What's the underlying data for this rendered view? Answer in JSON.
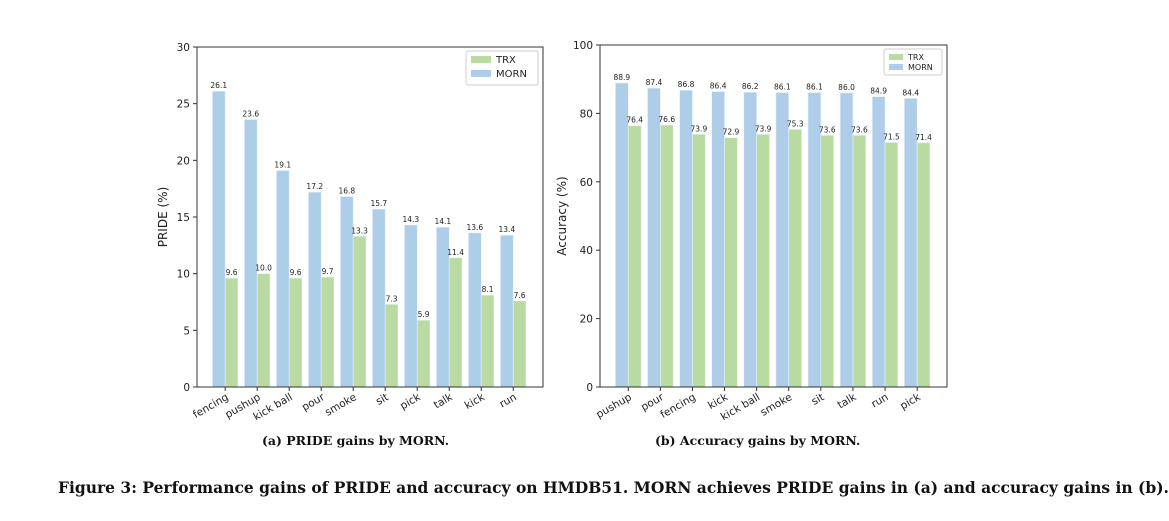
{
  "chart_data": [
    {
      "type": "bar",
      "caption": "(a) PRIDE gains by MORN.",
      "ylabel": "PRIDE (%)",
      "xlabel": "",
      "ylim": [
        0,
        30
      ],
      "yticks": [
        0,
        5,
        10,
        15,
        20,
        25,
        30
      ],
      "categories": [
        "fencing",
        "pushup",
        "kick ball",
        "pour",
        "smoke",
        "sit",
        "pick",
        "talk",
        "kick",
        "run"
      ],
      "series": [
        {
          "name": "MORN",
          "color": "#aecde9",
          "values": [
            26.1,
            23.6,
            19.1,
            17.2,
            16.8,
            15.7,
            14.3,
            14.1,
            13.6,
            13.4
          ]
        },
        {
          "name": "TRX",
          "color": "#b9dba2",
          "values": [
            9.6,
            10.0,
            9.6,
            9.7,
            13.3,
            7.3,
            5.9,
            11.4,
            8.1,
            7.6
          ]
        }
      ],
      "legend": [
        "TRX",
        "MORN"
      ],
      "legend_position": "top-right",
      "grid": false
    },
    {
      "type": "bar",
      "caption": "(b) Accuracy gains by MORN.",
      "ylabel": "Accuracy (%)",
      "xlabel": "",
      "ylim": [
        0,
        100
      ],
      "yticks": [
        0,
        20,
        40,
        60,
        80,
        100
      ],
      "categories": [
        "pushup",
        "pour",
        "fencing",
        "kick",
        "kick ball",
        "smoke",
        "sit",
        "talk",
        "run",
        "pick"
      ],
      "series": [
        {
          "name": "MORN",
          "color": "#aecde9",
          "values": [
            88.9,
            87.4,
            86.8,
            86.4,
            86.2,
            86.1,
            86.1,
            86.0,
            84.9,
            84.4
          ]
        },
        {
          "name": "TRX",
          "color": "#b9dba2",
          "values": [
            76.4,
            76.6,
            73.9,
            72.9,
            73.9,
            75.3,
            73.6,
            73.6,
            71.5,
            71.4
          ]
        }
      ],
      "legend": [
        "TRX",
        "MORN"
      ],
      "legend_position": "top-right",
      "grid": false
    }
  ],
  "figure_caption": "Figure 3: Performance gains of PRIDE and accuracy on HMDB51. MORN achieves PRIDE gains in (a) and accuracy gains in (b)."
}
